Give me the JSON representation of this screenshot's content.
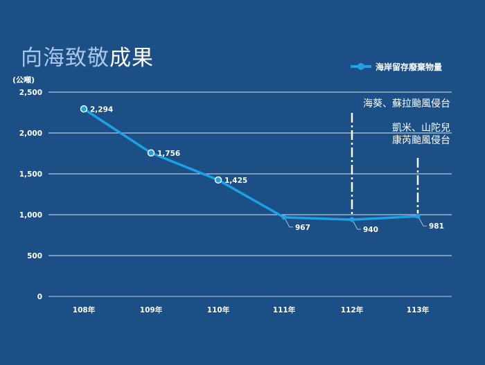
{
  "title": {
    "part1": "向海致敬",
    "part2": "成果"
  },
  "chart_data": {
    "type": "line",
    "title": "向海致敬成果",
    "ylabel": "(公噸)",
    "xlabel": "",
    "categories": [
      "108年",
      "109年",
      "110年",
      "111年",
      "112年",
      "113年"
    ],
    "series": [
      {
        "name": "海岸留存廢棄物量",
        "values": [
          2294,
          1756,
          1425,
          967,
          940,
          981
        ]
      }
    ],
    "value_labels": [
      "2,294",
      "1,756",
      "1,425",
      "967",
      "940",
      "981"
    ],
    "ylim": [
      0,
      2500
    ],
    "yticks": [
      0,
      500,
      1000,
      1500,
      2000,
      2500
    ],
    "ytick_labels": [
      "0",
      "500",
      "1,000",
      "1,500",
      "2,000",
      "2,500"
    ],
    "grid": true,
    "legend_position": "top-right",
    "annotations": [
      {
        "category": "112年",
        "lines": [
          "海葵、蘇拉颱風侵台"
        ]
      },
      {
        "category": "113年",
        "lines": [
          "凱米、山陀兒",
          "康芮颱風侵台"
        ]
      }
    ],
    "colors": {
      "series": "#1ea0e6",
      "background": "#1b4f86",
      "grid": "#ffffff"
    }
  }
}
